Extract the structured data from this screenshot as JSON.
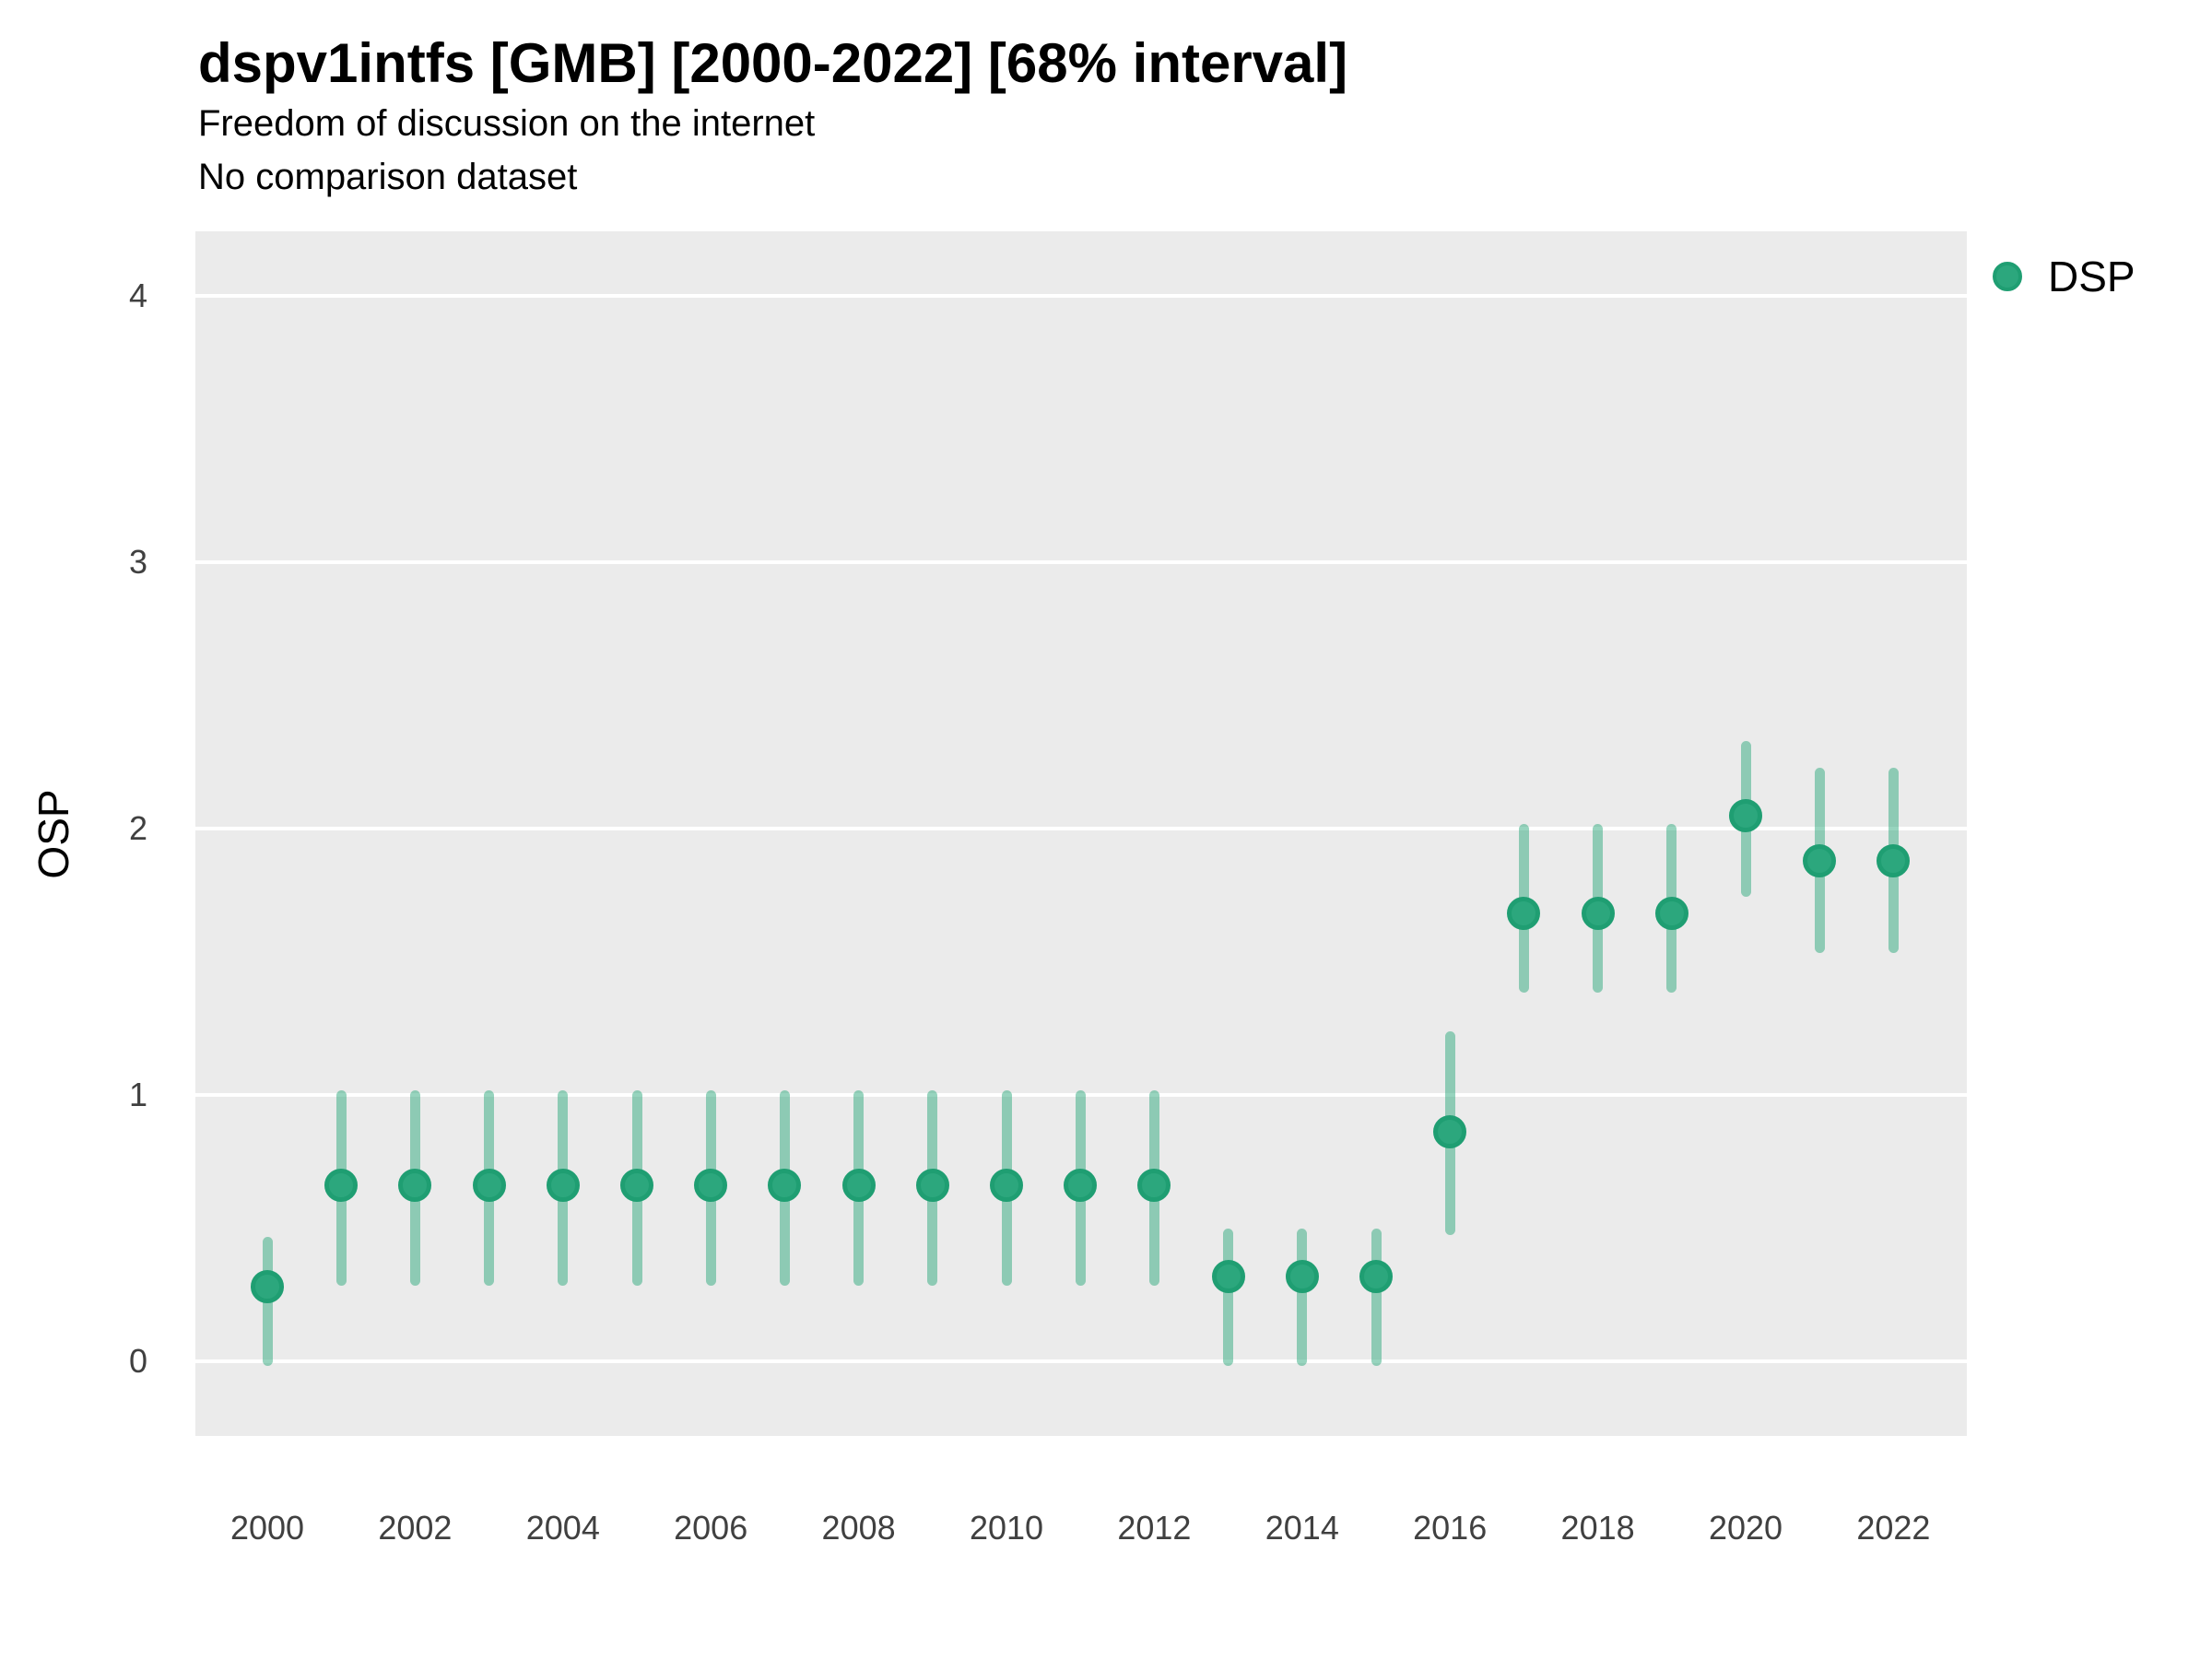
{
  "chart_data": {
    "type": "pointrange",
    "title": "dspv1intfs [GMB] [2000-2022] [68% interval]",
    "subtitle": "Freedom of discussion on the internet",
    "note": "No comparison dataset",
    "ylabel": "OSP",
    "legend_label": "DSP",
    "legend_position": "right",
    "grid": "horizontal-major-only",
    "ylim": [
      0,
      4
    ],
    "yticks": [
      "0",
      "1",
      "2",
      "3",
      "4"
    ],
    "xticks": [
      "2000",
      "2002",
      "2004",
      "2006",
      "2008",
      "2010",
      "2012",
      "2014",
      "2016",
      "2018",
      "2020",
      "2022"
    ],
    "series": [
      {
        "name": "DSP",
        "points": [
          {
            "year": 2000,
            "est": 0.28,
            "lo": 0.0,
            "hi": 0.45
          },
          {
            "year": 2001,
            "est": 0.66,
            "lo": 0.3,
            "hi": 1.0
          },
          {
            "year": 2002,
            "est": 0.66,
            "lo": 0.3,
            "hi": 1.0
          },
          {
            "year": 2003,
            "est": 0.66,
            "lo": 0.3,
            "hi": 1.0
          },
          {
            "year": 2004,
            "est": 0.66,
            "lo": 0.3,
            "hi": 1.0
          },
          {
            "year": 2005,
            "est": 0.66,
            "lo": 0.3,
            "hi": 1.0
          },
          {
            "year": 2006,
            "est": 0.66,
            "lo": 0.3,
            "hi": 1.0
          },
          {
            "year": 2007,
            "est": 0.66,
            "lo": 0.3,
            "hi": 1.0
          },
          {
            "year": 2008,
            "est": 0.66,
            "lo": 0.3,
            "hi": 1.0
          },
          {
            "year": 2009,
            "est": 0.66,
            "lo": 0.3,
            "hi": 1.0
          },
          {
            "year": 2010,
            "est": 0.66,
            "lo": 0.3,
            "hi": 1.0
          },
          {
            "year": 2011,
            "est": 0.66,
            "lo": 0.3,
            "hi": 1.0
          },
          {
            "year": 2012,
            "est": 0.66,
            "lo": 0.3,
            "hi": 1.0
          },
          {
            "year": 2013,
            "est": 0.32,
            "lo": 0.0,
            "hi": 0.48
          },
          {
            "year": 2014,
            "est": 0.32,
            "lo": 0.0,
            "hi": 0.48
          },
          {
            "year": 2015,
            "est": 0.32,
            "lo": 0.0,
            "hi": 0.48
          },
          {
            "year": 2016,
            "est": 0.86,
            "lo": 0.49,
            "hi": 1.22
          },
          {
            "year": 2017,
            "est": 1.68,
            "lo": 1.4,
            "hi": 2.0
          },
          {
            "year": 2018,
            "est": 1.68,
            "lo": 1.4,
            "hi": 2.0
          },
          {
            "year": 2019,
            "est": 1.68,
            "lo": 1.4,
            "hi": 2.0
          },
          {
            "year": 2020,
            "est": 2.05,
            "lo": 1.76,
            "hi": 2.31
          },
          {
            "year": 2021,
            "est": 1.88,
            "lo": 1.55,
            "hi": 2.21
          },
          {
            "year": 2022,
            "est": 1.88,
            "lo": 1.55,
            "hi": 2.21
          }
        ]
      }
    ],
    "colors": {
      "point_fill": "#2ca77d",
      "point_stroke": "#1f9e72",
      "interval": "rgba(38,166,120,0.48)",
      "panel_bg": "#ebebeb",
      "gridline": "#ffffff",
      "title_text": "#000000",
      "tick_text": "#404040"
    }
  }
}
